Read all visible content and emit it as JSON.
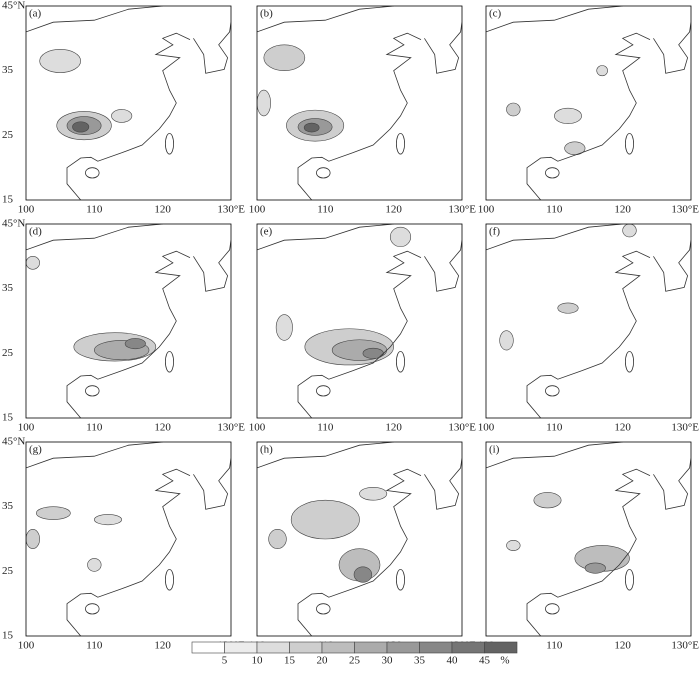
{
  "panels": [
    {
      "label": "(a)"
    },
    {
      "label": "(b)"
    },
    {
      "label": "(c)"
    },
    {
      "label": "(d)"
    },
    {
      "label": "(e)"
    },
    {
      "label": "(f)"
    },
    {
      "label": "(g)"
    },
    {
      "label": "(h)"
    },
    {
      "label": "(i)"
    }
  ],
  "x_ticks": [
    "100",
    "110",
    "120",
    "130°E"
  ],
  "y_ticks": [
    "15",
    "25",
    "35",
    "45°N"
  ],
  "colorbar": {
    "ticks": [
      "5",
      "10",
      "15",
      "20",
      "25",
      "30",
      "35",
      "40",
      "45"
    ],
    "unit": "%",
    "colors": [
      "#ffffff",
      "#ececec",
      "#dddddd",
      "#cecece",
      "#bdbdbd",
      "#ababab",
      "#999999",
      "#878787",
      "#757575",
      "#636363"
    ]
  }
}
